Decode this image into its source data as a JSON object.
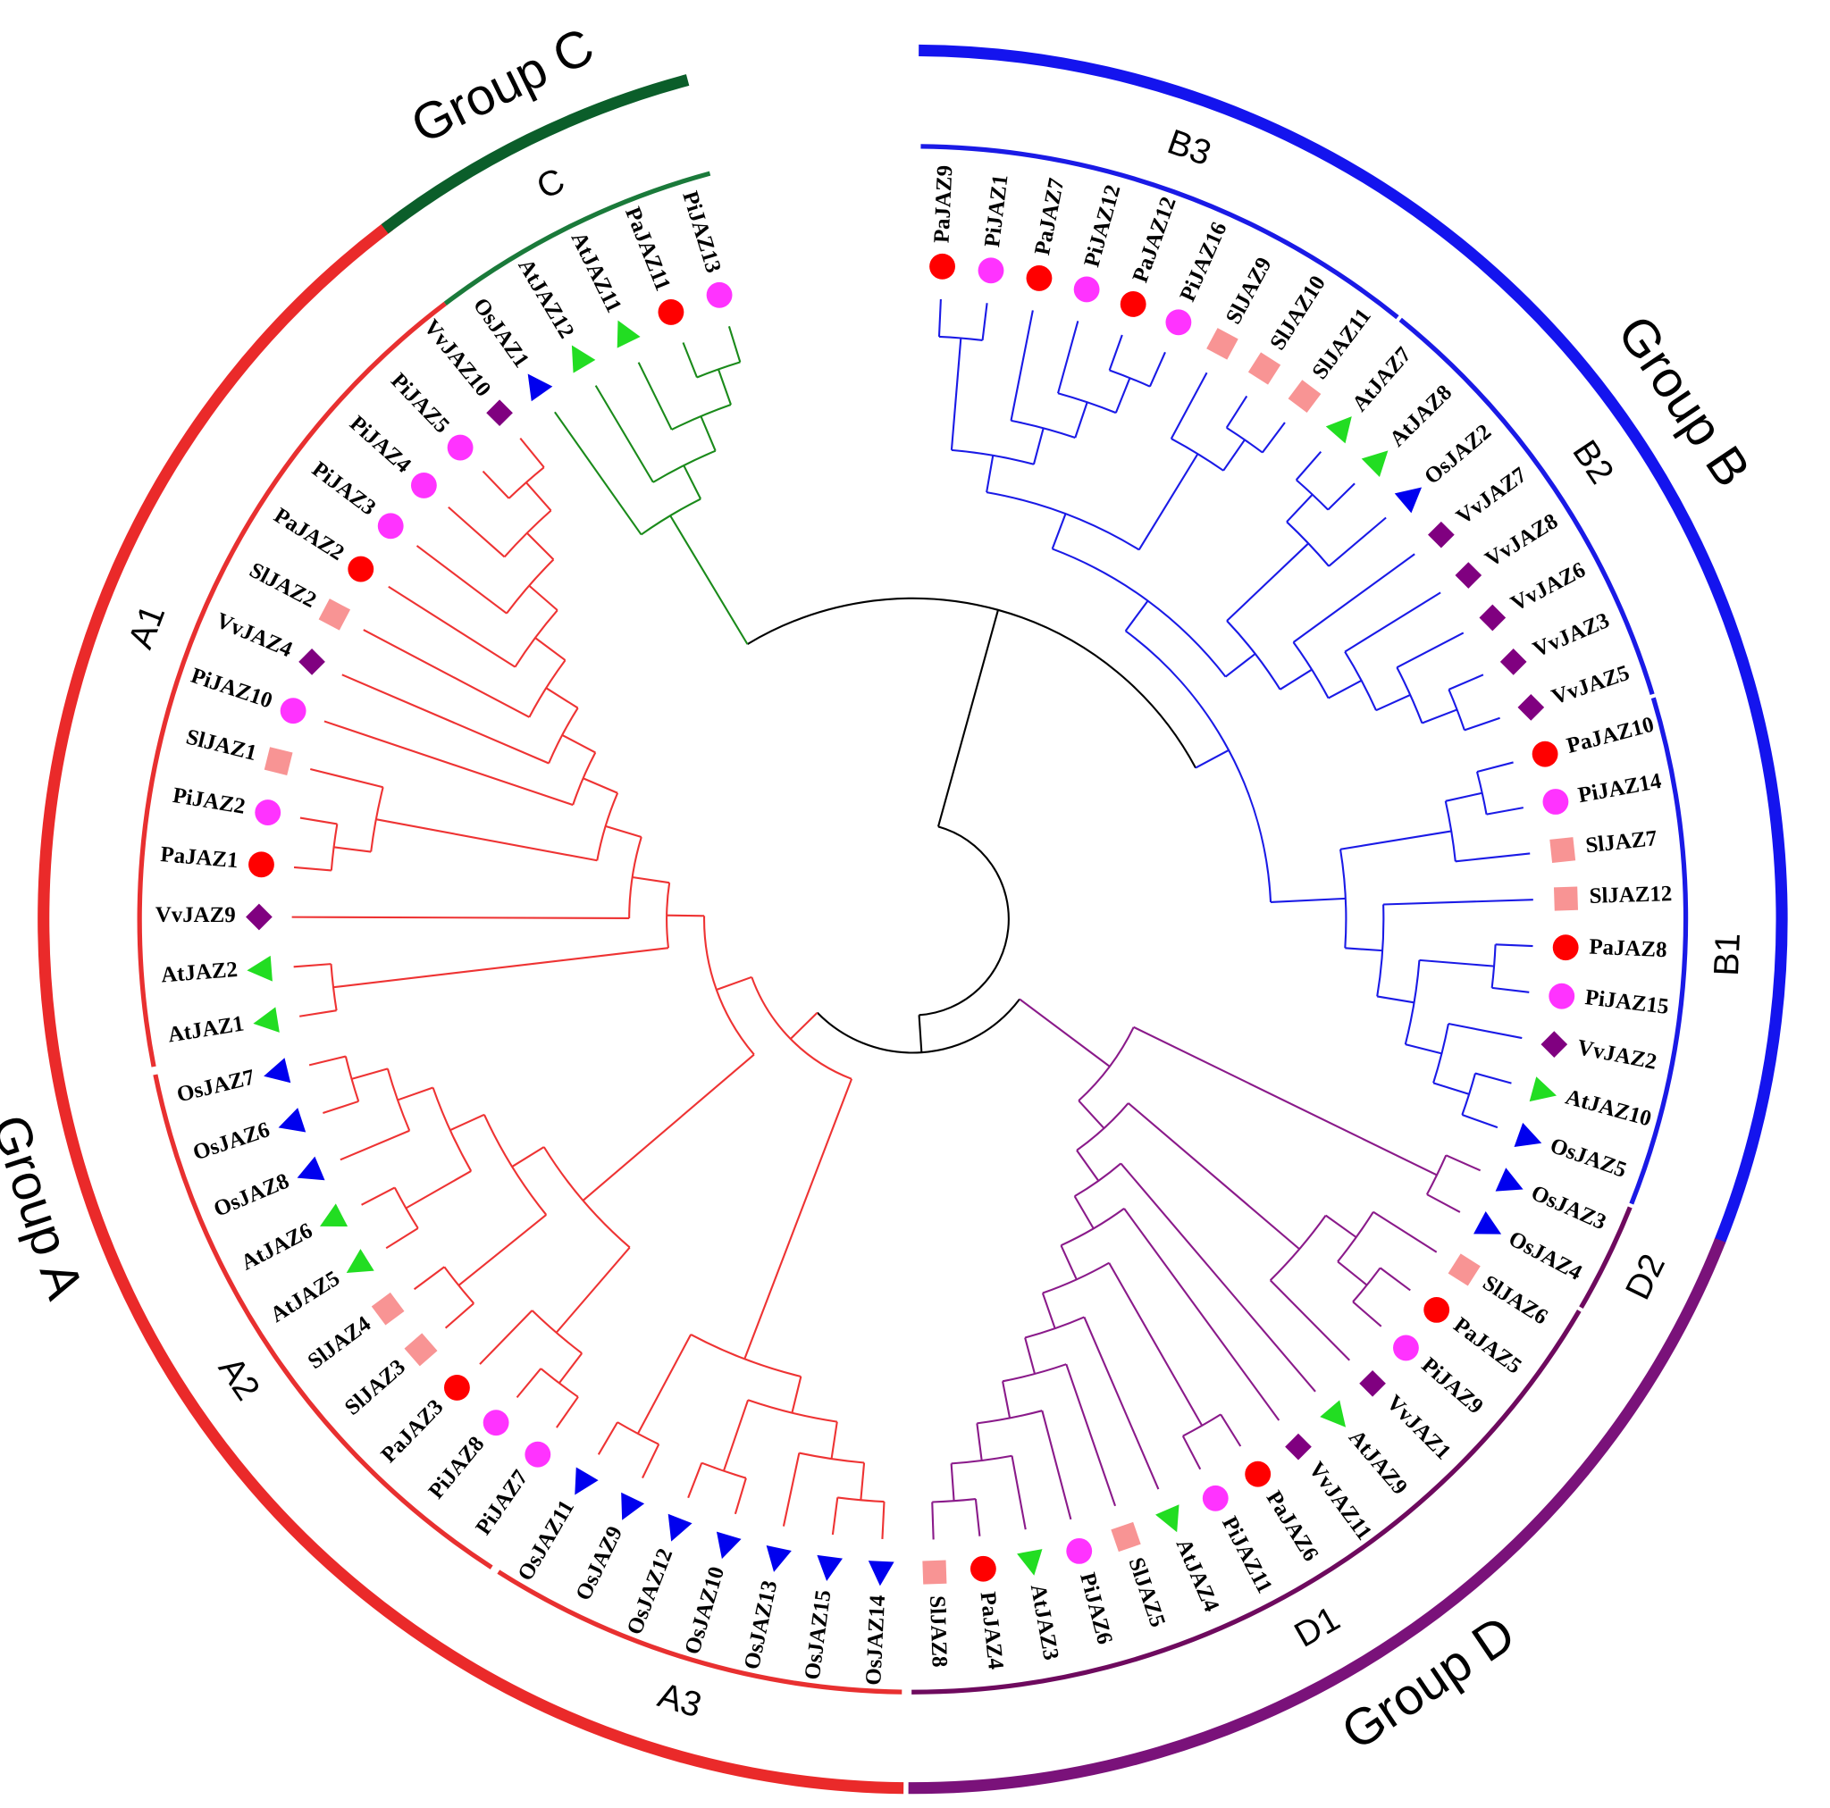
{
  "groups": [
    {
      "label": "Group B",
      "subgroups": [
        {
          "label": "B3",
          "leaves": [
            "PaJAZ9",
            "PiJAZ1",
            "PaJAZ7",
            "PiJAZ12",
            "PaJAZ12",
            "PiJAZ16",
            "SlJAZ9",
            "SlJAZ10",
            "SlJAZ11"
          ]
        },
        {
          "label": "B2",
          "leaves": [
            "AtJAZ7",
            "AtJAZ8",
            "OsJAZ2",
            "VvJAZ7",
            "VvJAZ8",
            "VvJAZ6",
            "VvJAZ3",
            "VvJAZ5"
          ]
        },
        {
          "label": "B1",
          "leaves": [
            "PaJAZ10",
            "PiJAZ14",
            "SlJAZ7",
            "SlJAZ12",
            "PaJAZ8",
            "PiJAZ15",
            "VvJAZ2",
            "AtJAZ10",
            "OsJAZ5"
          ]
        }
      ]
    },
    {
      "label": "Group D",
      "subgroups": [
        {
          "label": "D2",
          "leaves": [
            "OsJAZ3",
            "OsJAZ4"
          ]
        },
        {
          "label": "D1",
          "leaves": [
            "SlJAZ6",
            "PaJAZ5",
            "PiJAZ9",
            "VvJAZ1",
            "AtJAZ9",
            "VvJAZ11",
            "PaJAZ6",
            "PiJAZ11",
            "AtJAZ4",
            "SlJAZ5",
            "PiJAZ6",
            "AtJAZ3",
            "PaJAZ4",
            "SlJAZ8"
          ]
        }
      ]
    },
    {
      "label": "Group A",
      "subgroups": [
        {
          "label": "A3",
          "leaves": [
            "OsJAZ14",
            "OsJAZ15",
            "OsJAZ13",
            "OsJAZ10",
            "OsJAZ12",
            "OsJAZ9",
            "OsJAZ11"
          ]
        },
        {
          "label": "A2",
          "leaves": [
            "PiJAZ7",
            "PiJAZ8",
            "PaJAZ3",
            "SlJAZ3",
            "SlJAZ4",
            "AtJAZ5",
            "AtJAZ6",
            "OsJAZ8",
            "OsJAZ6",
            "OsJAZ7"
          ]
        },
        {
          "label": "A1",
          "leaves": [
            "AtJAZ1",
            "AtJAZ2",
            "VvJAZ9",
            "PaJAZ1",
            "PiJAZ2",
            "SlJAZ1",
            "PiJAZ10",
            "VvJAZ4",
            "SlJAZ2",
            "PaJAZ2",
            "PiJAZ3",
            "PiJAZ4",
            "PiJAZ5",
            "VvJAZ10"
          ]
        }
      ]
    },
    {
      "label": "Group C",
      "subgroups": [
        {
          "label": "C",
          "leaves": [
            "OsJAZ1",
            "AtJAZ12",
            "AtJAZ11",
            "PaJAZ11",
            "PiJAZ13"
          ]
        }
      ]
    }
  ]
}
